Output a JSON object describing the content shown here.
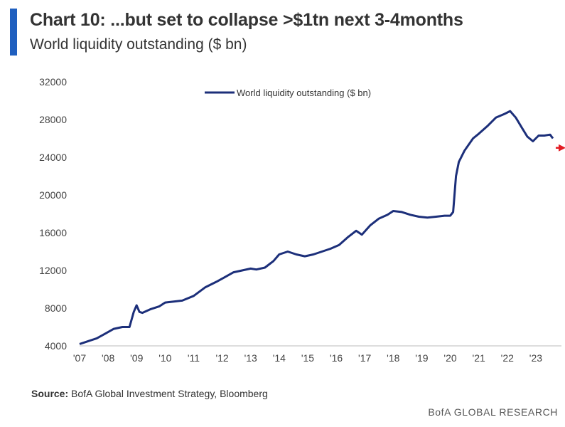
{
  "header": {
    "title": "Chart 10: ...but set to collapse >$1tn next 3-4months",
    "subtitle": "World liquidity outstanding ($ bn)"
  },
  "footer": {
    "source_label": "Source:",
    "source_text": "BofA Global Investment Strategy, Bloomberg",
    "brand": "BofA GLOBAL RESEARCH"
  },
  "colors": {
    "accent": "#1f5fbf",
    "series": "#1c2f7a",
    "arrow": "#e31b23"
  },
  "chart_data": {
    "type": "line",
    "title": "",
    "xlabel": "",
    "ylabel": "",
    "ylim": [
      4000,
      32000
    ],
    "xlim": [
      2007.0,
      2023.9
    ],
    "yticks": [
      4000,
      8000,
      12000,
      16000,
      20000,
      24000,
      28000,
      32000
    ],
    "xticks": [
      {
        "year": 2007,
        "label": "'07"
      },
      {
        "year": 2008,
        "label": "'08"
      },
      {
        "year": 2009,
        "label": "'09"
      },
      {
        "year": 2010,
        "label": "'10"
      },
      {
        "year": 2011,
        "label": "'11"
      },
      {
        "year": 2012,
        "label": "'12"
      },
      {
        "year": 2013,
        "label": "'13"
      },
      {
        "year": 2014,
        "label": "'14"
      },
      {
        "year": 2015,
        "label": "'15"
      },
      {
        "year": 2016,
        "label": "'16"
      },
      {
        "year": 2017,
        "label": "'17"
      },
      {
        "year": 2018,
        "label": "'18"
      },
      {
        "year": 2019,
        "label": "'19"
      },
      {
        "year": 2020,
        "label": "'20"
      },
      {
        "year": 2021,
        "label": "'21"
      },
      {
        "year": 2022,
        "label": "'22"
      },
      {
        "year": 2023,
        "label": "'23"
      }
    ],
    "legend": "top-center",
    "grid": false,
    "series": [
      {
        "name": "World liquidity outstanding ($ bn)",
        "x": [
          2007.0,
          2007.3,
          2007.6,
          2007.9,
          2008.2,
          2008.5,
          2008.75,
          2008.9,
          2009.0,
          2009.1,
          2009.2,
          2009.5,
          2009.8,
          2010.0,
          2010.3,
          2010.6,
          2011.0,
          2011.4,
          2011.8,
          2012.1,
          2012.4,
          2012.7,
          2013.0,
          2013.2,
          2013.5,
          2013.8,
          2014.0,
          2014.3,
          2014.6,
          2014.9,
          2015.2,
          2015.5,
          2015.8,
          2016.1,
          2016.4,
          2016.7,
          2016.9,
          2017.2,
          2017.5,
          2017.8,
          2018.0,
          2018.3,
          2018.6,
          2018.9,
          2019.2,
          2019.5,
          2019.8,
          2020.0,
          2020.1,
          2020.2,
          2020.3,
          2020.5,
          2020.8,
          2021.0,
          2021.3,
          2021.6,
          2021.9,
          2022.1,
          2022.3,
          2022.5,
          2022.7,
          2022.9,
          2023.1,
          2023.3,
          2023.5,
          2023.6
        ],
        "values": [
          4200,
          4500,
          4800,
          5300,
          5800,
          6000,
          6000,
          7600,
          8300,
          7600,
          7500,
          7900,
          8200,
          8600,
          8700,
          8800,
          9300,
          10200,
          10800,
          11300,
          11800,
          12000,
          12200,
          12100,
          12300,
          13000,
          13700,
          14000,
          13700,
          13500,
          13700,
          14000,
          14300,
          14700,
          15500,
          16200,
          15800,
          16800,
          17500,
          17900,
          18300,
          18200,
          17900,
          17700,
          17600,
          17700,
          17800,
          17800,
          18200,
          22000,
          23500,
          24700,
          26000,
          26500,
          27300,
          28200,
          28600,
          28900,
          28200,
          27200,
          26200,
          25700,
          26300,
          26300,
          26400,
          26000
        ]
      }
    ],
    "annotations": [
      {
        "type": "arrow",
        "direction": "right",
        "y": 25000,
        "x_from": 2023.7,
        "x_to": 2024.05
      }
    ]
  }
}
